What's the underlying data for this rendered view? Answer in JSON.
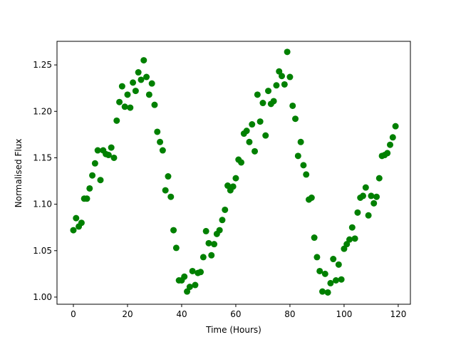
{
  "chart_data": {
    "type": "scatter",
    "x_label": "Time (Hours)",
    "y_label": "Normalised Flux",
    "x": [
      0,
      1,
      2,
      3,
      4,
      5,
      6,
      7,
      8,
      9,
      10,
      11,
      12,
      13,
      14,
      15,
      16,
      17,
      18,
      19,
      20,
      21,
      22,
      23,
      24,
      25,
      26,
      27,
      28,
      29,
      30,
      31,
      32,
      33,
      34,
      35,
      36,
      37,
      38,
      39,
      40,
      41,
      42,
      43,
      44,
      45,
      46,
      47,
      48,
      49,
      50,
      51,
      52,
      53,
      54,
      55,
      56,
      57,
      58,
      59,
      60,
      61,
      62,
      63,
      64,
      65,
      66,
      67,
      68,
      69,
      70,
      71,
      72,
      73,
      74,
      75,
      76,
      77,
      78,
      79,
      80,
      81,
      82,
      83,
      84,
      85,
      86,
      87,
      88,
      89,
      90,
      91,
      92,
      93,
      94,
      95,
      96,
      97,
      98,
      99,
      100,
      101,
      102,
      103,
      104,
      105,
      106,
      107,
      108,
      109,
      110,
      111,
      112,
      113,
      114,
      115,
      116,
      117,
      118,
      119
    ],
    "series": [
      {
        "color": "#008000",
        "values": [
          1.072,
          1.085,
          1.076,
          1.08,
          1.106,
          1.106,
          1.117,
          1.131,
          1.144,
          1.158,
          1.126,
          1.158,
          1.154,
          1.153,
          1.161,
          1.15,
          1.19,
          1.21,
          1.227,
          1.205,
          1.218,
          1.204,
          1.231,
          1.222,
          1.242,
          1.234,
          1.255,
          1.237,
          1.218,
          1.23,
          1.207,
          1.178,
          1.167,
          1.158,
          1.115,
          1.13,
          1.108,
          1.072,
          1.053,
          1.018,
          1.018,
          1.022,
          1.006,
          1.011,
          1.028,
          1.013,
          1.026,
          1.027,
          1.043,
          1.071,
          1.058,
          1.045,
          1.057,
          1.068,
          1.072,
          1.083,
          1.094,
          1.12,
          1.115,
          1.119,
          1.128,
          1.148,
          1.145,
          1.176,
          1.179,
          1.167,
          1.186,
          1.157,
          1.218,
          1.189,
          1.209,
          1.174,
          1.222,
          1.208,
          1.211,
          1.228,
          1.243,
          1.238,
          1.229,
          1.264,
          1.237,
          1.206,
          1.192,
          1.152,
          1.167,
          1.142,
          1.132,
          1.105,
          1.107,
          1.064,
          1.043,
          1.028,
          1.006,
          1.025,
          1.005,
          1.015,
          1.041,
          1.018,
          1.035,
          1.019,
          1.052,
          1.057,
          1.062,
          1.075,
          1.063,
          1.091,
          1.107,
          1.109,
          1.118,
          1.088,
          1.109,
          1.101,
          1.108,
          1.128,
          1.152,
          1.153,
          1.155,
          1.164,
          1.172,
          1.184
        ]
      }
    ],
    "xlim": [
      -6.05,
      124.5
    ],
    "ylim": [
      0.9923,
      1.2754
    ],
    "xticks": [
      0,
      20,
      40,
      60,
      80,
      100,
      120
    ],
    "yticks": [
      {
        "value": 1,
        "label": "1.00"
      },
      1.05,
      {
        "value": 1.1,
        "label": "1.10"
      },
      1.15,
      {
        "value": 1.2,
        "label": "1.20"
      },
      1.25
    ],
    "grid": false
  }
}
